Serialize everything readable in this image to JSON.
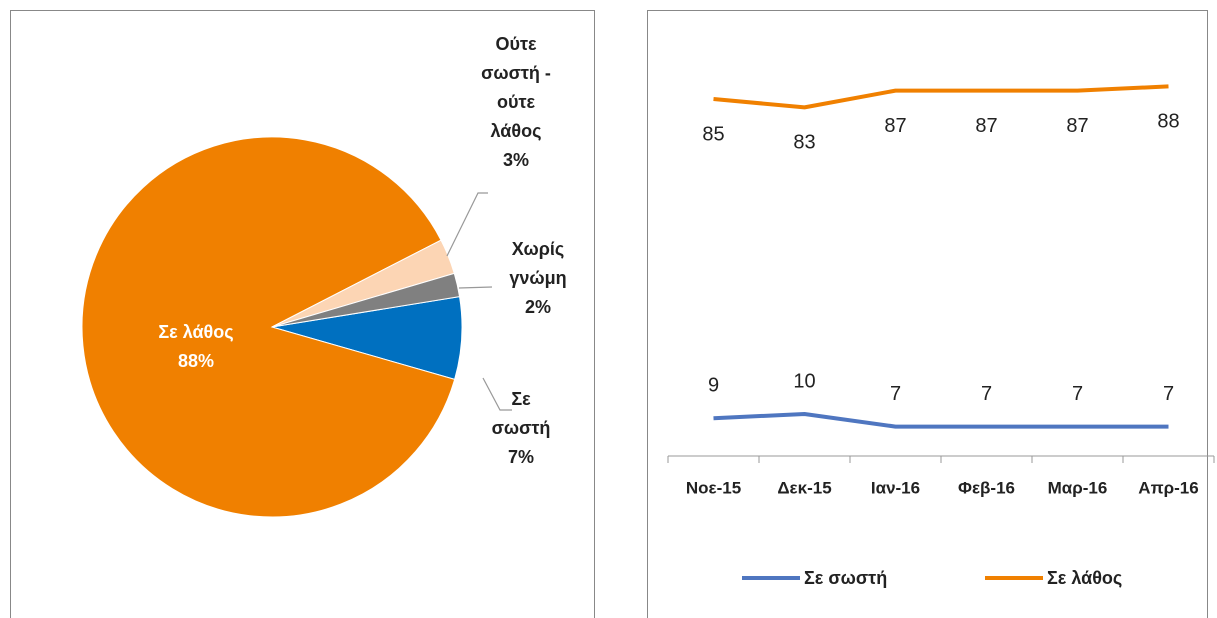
{
  "chart_data": [
    {
      "type": "pie",
      "categories": [
        "Σε σωστή",
        "Σε λάθος",
        "Ούτε σωστή - ούτε λάθος",
        "Χωρίς γνώμη"
      ],
      "values": [
        7,
        88,
        3,
        2
      ],
      "value_labels": [
        "7%",
        "88%",
        "3%",
        "2%"
      ],
      "colors": [
        "#0070c0",
        "#f08000",
        "#fcd5b4",
        "#808080"
      ]
    },
    {
      "type": "line",
      "categories": [
        "Νοε-15",
        "Δεκ-15",
        "Ιαν-16",
        "Φεβ-16",
        "Μαρ-16",
        "Απρ-16"
      ],
      "series": [
        {
          "name": "Σε σωστή",
          "color": "#4f76c0",
          "values": [
            9,
            10,
            7,
            7,
            7,
            7
          ]
        },
        {
          "name": "Σε λάθος",
          "color": "#f08000",
          "values": [
            85,
            83,
            87,
            87,
            87,
            88
          ]
        }
      ],
      "ylim": [
        0,
        95
      ]
    }
  ]
}
